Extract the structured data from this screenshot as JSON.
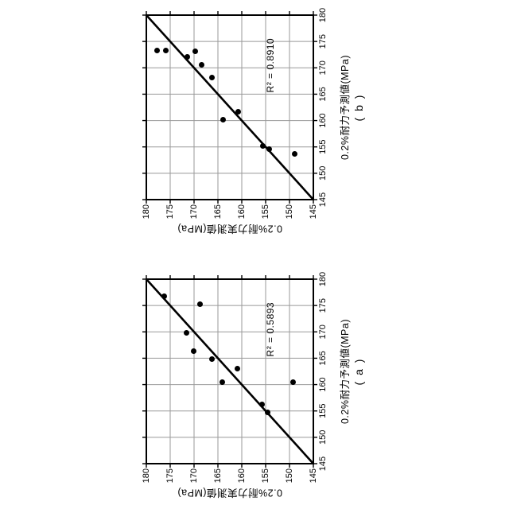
{
  "colors": {
    "background": "#ffffff",
    "ink": "#000000",
    "grid": "#999999"
  },
  "chart_data": [
    {
      "type": "scatter",
      "caption": "( a )",
      "xlabel": "0.2%耐力予測値(MPa)",
      "ylabel": "0.2%耐力実測値(MPa)",
      "xlim": [
        145,
        180
      ],
      "ylim": [
        145,
        180
      ],
      "xticks": [
        145,
        150,
        155,
        160,
        165,
        170,
        175,
        180
      ],
      "yticks": [
        145,
        150,
        155,
        160,
        165,
        170,
        175,
        180
      ],
      "grid": true,
      "legend": "none",
      "r2_text": "R² = 0.5893",
      "trendline": [
        145,
        145,
        180,
        180
      ],
      "points": [
        [
          176.8,
          176.3
        ],
        [
          175.3,
          168.7
        ],
        [
          169.8,
          171.6
        ],
        [
          166.3,
          170.1
        ],
        [
          164.9,
          166.2
        ],
        [
          163.1,
          161.0
        ],
        [
          160.5,
          164.1
        ],
        [
          160.4,
          149.2
        ],
        [
          156.2,
          155.7
        ],
        [
          154.7,
          154.6
        ]
      ]
    },
    {
      "type": "scatter",
      "caption": "( b )",
      "xlabel": "0.2%耐力予測値(MPa)",
      "ylabel": "0.2%耐力実測値(MPa)",
      "xlim": [
        145,
        180
      ],
      "ylim": [
        145,
        180
      ],
      "xticks": [
        145,
        150,
        155,
        160,
        165,
        170,
        175,
        180
      ],
      "yticks": [
        145,
        150,
        155,
        160,
        165,
        170,
        175,
        180
      ],
      "grid": true,
      "legend": "none",
      "r2_text": "R² = 0.8910",
      "trendline": [
        145,
        145,
        180,
        180
      ],
      "points": [
        [
          173.3,
          177.8
        ],
        [
          173.3,
          175.9
        ],
        [
          172.1,
          171.4
        ],
        [
          173.1,
          169.8
        ],
        [
          170.6,
          168.4
        ],
        [
          168.2,
          166.2
        ],
        [
          161.7,
          160.8
        ],
        [
          160.1,
          163.9
        ],
        [
          155.2,
          155.6
        ],
        [
          154.6,
          154.3
        ],
        [
          153.6,
          148.9
        ]
      ]
    }
  ]
}
